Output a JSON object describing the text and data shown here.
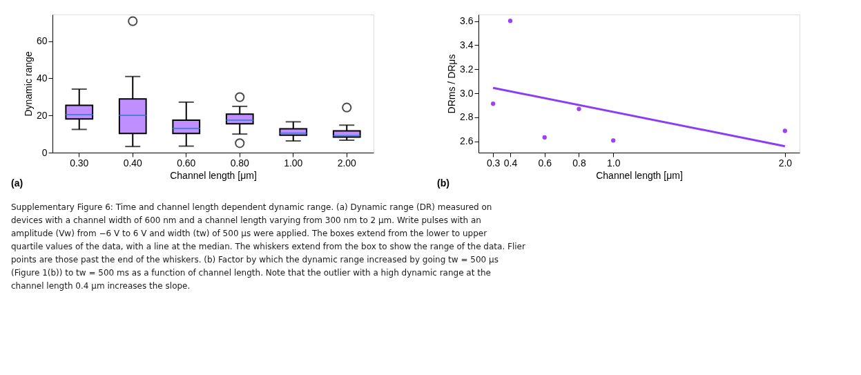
{
  "chart_data": [
    {
      "type": "box",
      "xlabel": "Channel length [μm]",
      "ylabel": "Dynamic range",
      "categories": [
        "0.30",
        "0.40",
        "0.60",
        "0.80",
        "1.00",
        "2.00"
      ],
      "series": [
        {
          "color": "#bf8fff",
          "boxes": [
            {
              "low": 12.5,
              "q1": 18.1,
              "median": 20.5,
              "q3": 25.5,
              "high": 34.2
            },
            {
              "low": 3.3,
              "q1": 10.3,
              "median": 20.1,
              "q3": 28.9,
              "high": 41,
              "outliers": [
                70.8
              ]
            },
            {
              "low": 3.5,
              "q1": 10.3,
              "median": 13.0,
              "q3": 17.5,
              "high": 27.2
            },
            {
              "low": 10.0,
              "q1": 15.5,
              "median": 17.5,
              "q3": 20.7,
              "high": 24.9,
              "outliers": [
                29.9,
                5.1
              ]
            },
            {
              "low": 6.3,
              "q1": 9.4,
              "median": 10.5,
              "q3": 12.8,
              "high": 16.6
            },
            {
              "low": 6.7,
              "q1": 8.4,
              "median": 9.1,
              "q3": 11.7,
              "high": 14.8,
              "outliers": [
                24.3
              ]
            }
          ]
        }
      ],
      "ylim": [
        0,
        74.4
      ],
      "yticks": [
        0,
        20,
        40,
        60
      ],
      "grid": false,
      "annotations": [
        "(a)",
        "Supplementary Figure 6: Time and channel length dependent dynamic range. (a) Dynamic range (DR) measured on",
        "devices with a channel width of 600 nm and a channel length varying from 300 nm to 2 μm. Write pulses with an",
        "amplitude (Vw) from −6 V to 6 V and width (tw) of 500 μs were applied. The boxes extend from the lower to upper",
        "quartile values of the data, with a line at the median. The whiskers extend from the box to show the range of the data. Flier",
        "points are those past the end of the whiskers. (b) Factor by which the dynamic range increased by going tw = 500 μs",
        "(Figure 1(b)) to tw = 500 ms as a function of channel length. Note that the outlier with a high dynamic range at the",
        "channel length 0.4 μm increases the slope."
      ]
    },
    {
      "type": "scatter",
      "xlabel": "Channel length [μm]",
      "ylabel": "DRms / DRμs",
      "series": [
        {
          "type": "scatter",
          "color": "#9b42f5",
          "x": [
            0.3,
            0.4,
            0.6,
            0.8,
            1.0,
            2.0
          ],
          "values": [
            2.913,
            3.602,
            2.633,
            2.869,
            2.607,
            2.687
          ]
        },
        {
          "type": "line",
          "color": "#8c3cf5",
          "x": [
            0.3,
            2.0
          ],
          "values": [
            3.045,
            2.559
          ]
        }
      ],
      "xlim": [
        0.215,
        2.085
      ],
      "ylim": [
        2.506,
        3.655
      ],
      "xticks": [
        0.3,
        0.4,
        0.6,
        0.8,
        {
          "value": 1.0,
          "label": "1.0"
        },
        {
          "value": 2.0,
          "label": "2.0"
        }
      ],
      "yticks": [
        2.6,
        2.8,
        {
          "value": 3.0,
          "label": "3.0"
        },
        3.2,
        3.4,
        3.6
      ],
      "grid": false,
      "annotations": [
        "(b)"
      ]
    }
  ]
}
